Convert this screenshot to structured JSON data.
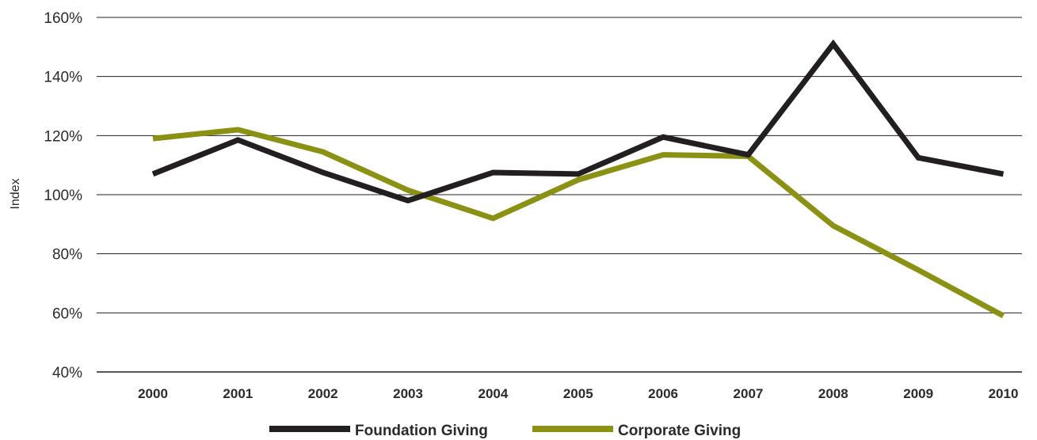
{
  "chart_data": {
    "type": "line",
    "title": "",
    "xlabel": "",
    "ylabel": "Index",
    "categories": [
      "2000",
      "2001",
      "2002",
      "2003",
      "2004",
      "2005",
      "2006",
      "2007",
      "2008",
      "2009",
      "2010"
    ],
    "ylim": [
      40,
      160
    ],
    "ytick_labels": [
      "40%",
      "60%",
      "80%",
      "100%",
      "120%",
      "140%",
      "160%"
    ],
    "ytick_values": [
      40,
      60,
      80,
      100,
      120,
      140,
      160
    ],
    "grid": "horizontal",
    "legend_position": "bottom-center",
    "series": [
      {
        "name": "Foundation Giving",
        "color": "#231f20",
        "values": [
          107,
          118.5,
          107.5,
          98,
          107.5,
          107,
          119.5,
          113.5,
          151,
          112.5,
          107
        ]
      },
      {
        "name": "Corporate Giving",
        "color": "#8a9113",
        "values": [
          119,
          122,
          114.5,
          101.5,
          92,
          105,
          113.5,
          113,
          89.5,
          74.5,
          59
        ]
      }
    ]
  }
}
